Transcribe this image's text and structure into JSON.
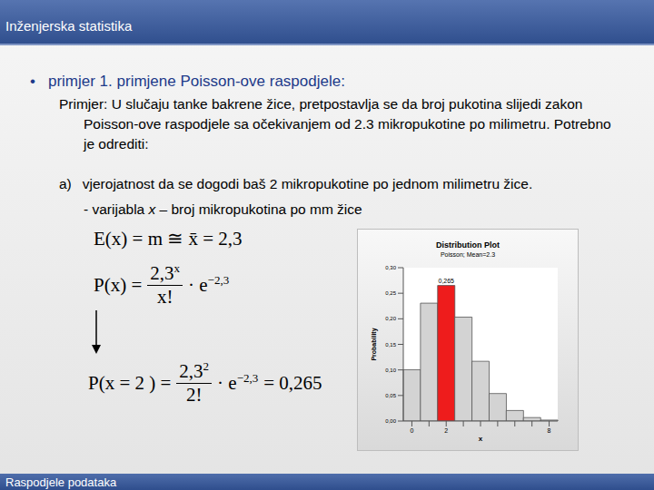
{
  "header": {
    "title": "Inženjerska statistika"
  },
  "bullet": {
    "symbol": "•",
    "text": "primjer 1. primjene Poisson-ove raspodjele:"
  },
  "problem": "Primjer: U slučaju tanke bakrene žice, pretpostavlja se da broj pukotina slijedi zakon Poisson-ove raspodjele sa očekivanjem od 2.3 mikropukotine po milimetru. Potrebno je odrediti:",
  "task": {
    "label": "a)",
    "text": "vjerojatnost da se dogodi baš 2 mikropukotine po jednom milimetru žice."
  },
  "variable": {
    "prefix": "- varijabla ",
    "symbol": "x",
    "text": " – broj mikropukotina po mm žice"
  },
  "formulas": [
    {
      "text": "E(x) = m ≅ x̄ = 2,3"
    },
    {
      "lhs": "P(x) =",
      "numerator_base": "2,3",
      "numerator_exp": "x",
      "denominator": "x!",
      "factor": "· e",
      "exp": "−2,3"
    },
    {
      "lhs": "P(x = 2 ) =",
      "numerator_base": "2,3",
      "numerator_exp": "2",
      "denominator": "2!",
      "factor": "· e",
      "exp": "−2,3",
      "result": "= 0,265"
    }
  ],
  "chart_data": {
    "type": "bar",
    "title": "Distribution Plot",
    "subtitle": "Poisson; Mean=2.3",
    "x_label": "x",
    "y_label": "Probability",
    "categories": [
      "0",
      null,
      "2",
      null,
      null,
      null,
      null,
      null,
      "8"
    ],
    "values": [
      0.1003,
      0.2306,
      0.2652,
      0.2033,
      0.1169,
      0.0538,
      0.0206,
      0.0068,
      0.0019
    ],
    "value_labels": [
      null,
      null,
      "0,265",
      null,
      null,
      null,
      null,
      null,
      null
    ],
    "data_labels": true,
    "colors": [
      "#d3d3d3",
      "#d3d3d3",
      "#ee1c1c",
      "#d3d3d3",
      "#d3d3d3",
      "#d3d3d3",
      "#d3d3d3",
      "#d3d3d3",
      "#d3d3d3"
    ],
    "ylim": [
      0,
      0.3
    ],
    "yticks": [
      {
        "value": 0,
        "label": "0,00"
      },
      {
        "value": 0.05,
        "label": "0,05"
      },
      {
        "value": 0.1,
        "label": "0,10"
      },
      {
        "value": 0.15,
        "label": "0,15"
      },
      {
        "value": 0.2,
        "label": "0,20"
      },
      {
        "value": 0.25,
        "label": "0,25"
      },
      {
        "value": 0.3,
        "label": "0,30"
      }
    ],
    "grid": false
  },
  "footer": "Raspodjele podataka"
}
